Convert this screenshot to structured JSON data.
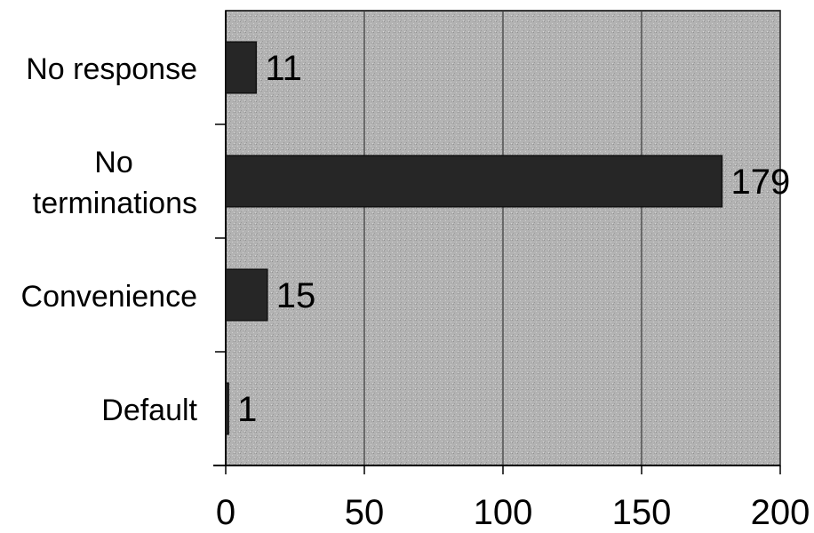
{
  "chart_data": {
    "type": "bar",
    "orientation": "horizontal",
    "title": "",
    "xlabel": "",
    "ylabel": "",
    "categories": [
      "No response",
      "No terminations",
      "Convenience",
      "Default"
    ],
    "category_lines": [
      [
        "No response"
      ],
      [
        "No",
        "terminations"
      ],
      [
        "Convenience"
      ],
      [
        "Default"
      ]
    ],
    "values": [
      11,
      179,
      15,
      1
    ],
    "data_labels": [
      "11",
      "179",
      "15",
      "1"
    ],
    "xlim": [
      0,
      200
    ],
    "xticks": [
      0,
      50,
      100,
      150,
      200
    ],
    "xtick_labels": [
      "0",
      "50",
      "100",
      "150",
      "200"
    ],
    "grid": "vertical",
    "legend": "none",
    "colors": {
      "plot_background": "#b3b3b3",
      "bar_fill": "#262626",
      "gridline": "#3a3a3a",
      "axis": "#000000",
      "text": "#000000"
    }
  }
}
